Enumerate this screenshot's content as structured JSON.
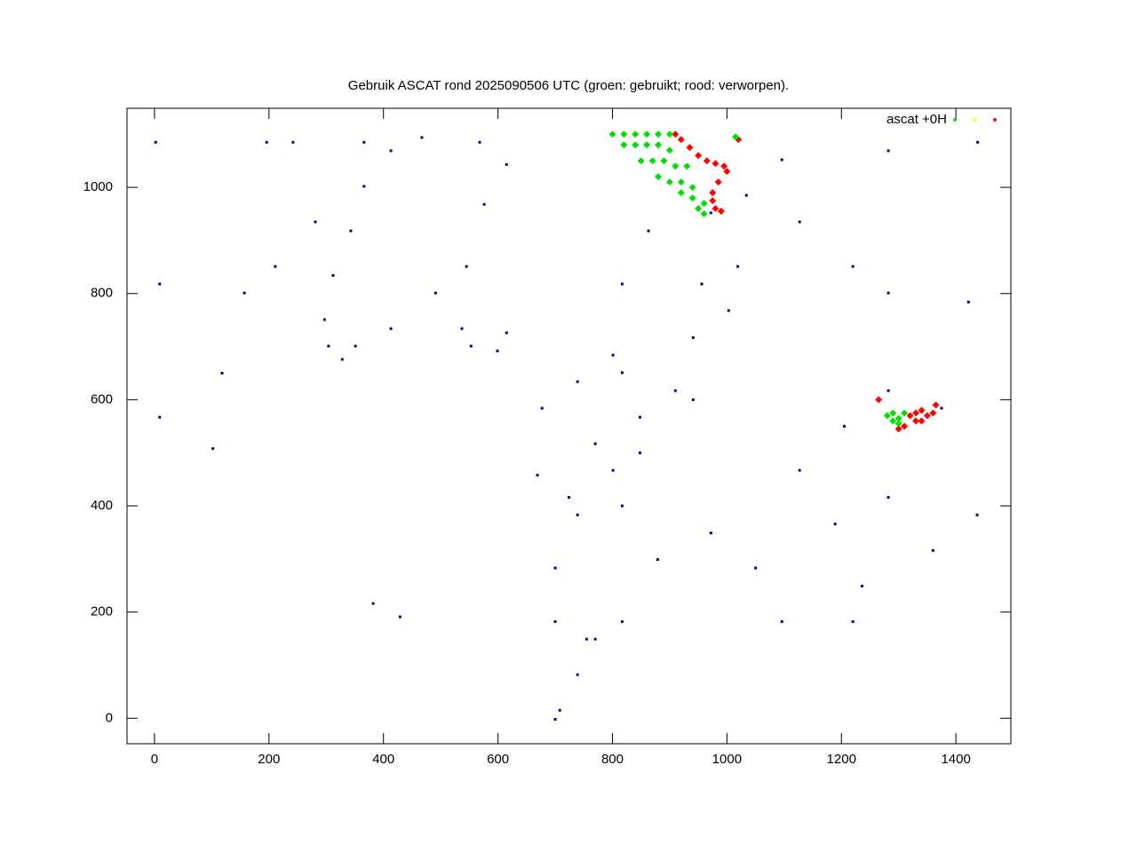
{
  "chart_data": {
    "type": "scatter",
    "title": "Gebruik ASCAT rond 2025090506 UTC (groen: gebruikt; rood: verworpen).",
    "xlim": [
      -48,
      1496
    ],
    "ylim": [
      -48,
      1149
    ],
    "xticks": [
      0,
      200,
      400,
      600,
      800,
      1000,
      1200,
      1400
    ],
    "yticks": [
      0,
      200,
      400,
      600,
      800,
      1000
    ],
    "legend": "top-right",
    "series": [
      {
        "name": "ascat +0H",
        "color": "#00e000",
        "x": [
          800,
          820,
          840,
          860,
          880,
          900,
          820,
          840,
          860,
          880,
          900,
          850,
          870,
          890,
          910,
          930,
          880,
          900,
          920,
          940,
          920,
          940,
          960,
          950,
          960,
          1015,
          1280,
          1290,
          1300,
          1290,
          1310,
          1300
        ],
        "y": [
          1100,
          1100,
          1100,
          1100,
          1100,
          1100,
          1080,
          1080,
          1080,
          1080,
          1070,
          1050,
          1050,
          1050,
          1040,
          1040,
          1020,
          1010,
          1010,
          1000,
          990,
          980,
          970,
          960,
          950,
          1095,
          570,
          575,
          565,
          560,
          575,
          555
        ]
      },
      {
        "color": "#ffff00",
        "x": [],
        "y": []
      },
      {
        "color": "#ff0000",
        "x": [
          910,
          920,
          935,
          950,
          965,
          980,
          995,
          1000,
          985,
          975,
          975,
          980,
          990,
          1020,
          1320,
          1330,
          1340,
          1350,
          1330,
          1310,
          1340,
          1360,
          1300,
          1265,
          1365
        ],
        "y": [
          1100,
          1090,
          1075,
          1060,
          1050,
          1045,
          1040,
          1030,
          1010,
          990,
          975,
          960,
          955,
          1090,
          570,
          575,
          580,
          570,
          560,
          550,
          560,
          575,
          545,
          600,
          590
        ]
      },
      {
        "color": "#0000a0",
        "x": [
          366,
          413,
          467,
          568,
          615,
          576,
          545,
          491,
          413,
          351,
          328,
          304,
          297,
          312,
          343,
          366,
          537,
          615,
          599,
          553,
          2,
          196,
          157,
          118,
          102,
          9,
          9,
          242,
          281,
          211,
          801,
          817,
          863,
          972,
          1034,
          1019,
          941,
          910,
          848,
          817,
          677,
          739,
          770,
          801,
          724,
          669,
          848,
          817,
          739,
          700,
          700,
          755,
          817,
          879,
          972,
          1050,
          1096,
          1220,
          1236,
          1360,
          1437,
          1282,
          1189,
          1127,
          1205,
          1282,
          1375,
          1422,
          1282,
          1220,
          1127,
          1096,
          1282,
          1438,
          956,
          1003,
          941,
          770,
          739,
          708,
          700,
          382,
          429
        ],
        "y": [
          1085,
          1069,
          1094,
          1085,
          1043,
          968,
          851,
          801,
          734,
          701,
          676,
          701,
          751,
          834,
          918,
          1002,
          734,
          726,
          692,
          701,
          1085,
          1085,
          801,
          650,
          508,
          567,
          818,
          1085,
          935,
          851,
          684,
          818,
          918,
          952,
          985,
          851,
          717,
          617,
          567,
          651,
          584,
          634,
          517,
          467,
          416,
          458,
          500,
          400,
          383,
          283,
          182,
          149,
          182,
          299,
          349,
          283,
          182,
          182,
          249,
          316,
          383,
          416,
          366,
          467,
          550,
          617,
          584,
          784,
          801,
          851,
          935,
          1052,
          1069,
          1085,
          818,
          768,
          600,
          149,
          82,
          15,
          -2,
          216,
          191
        ]
      }
    ]
  }
}
